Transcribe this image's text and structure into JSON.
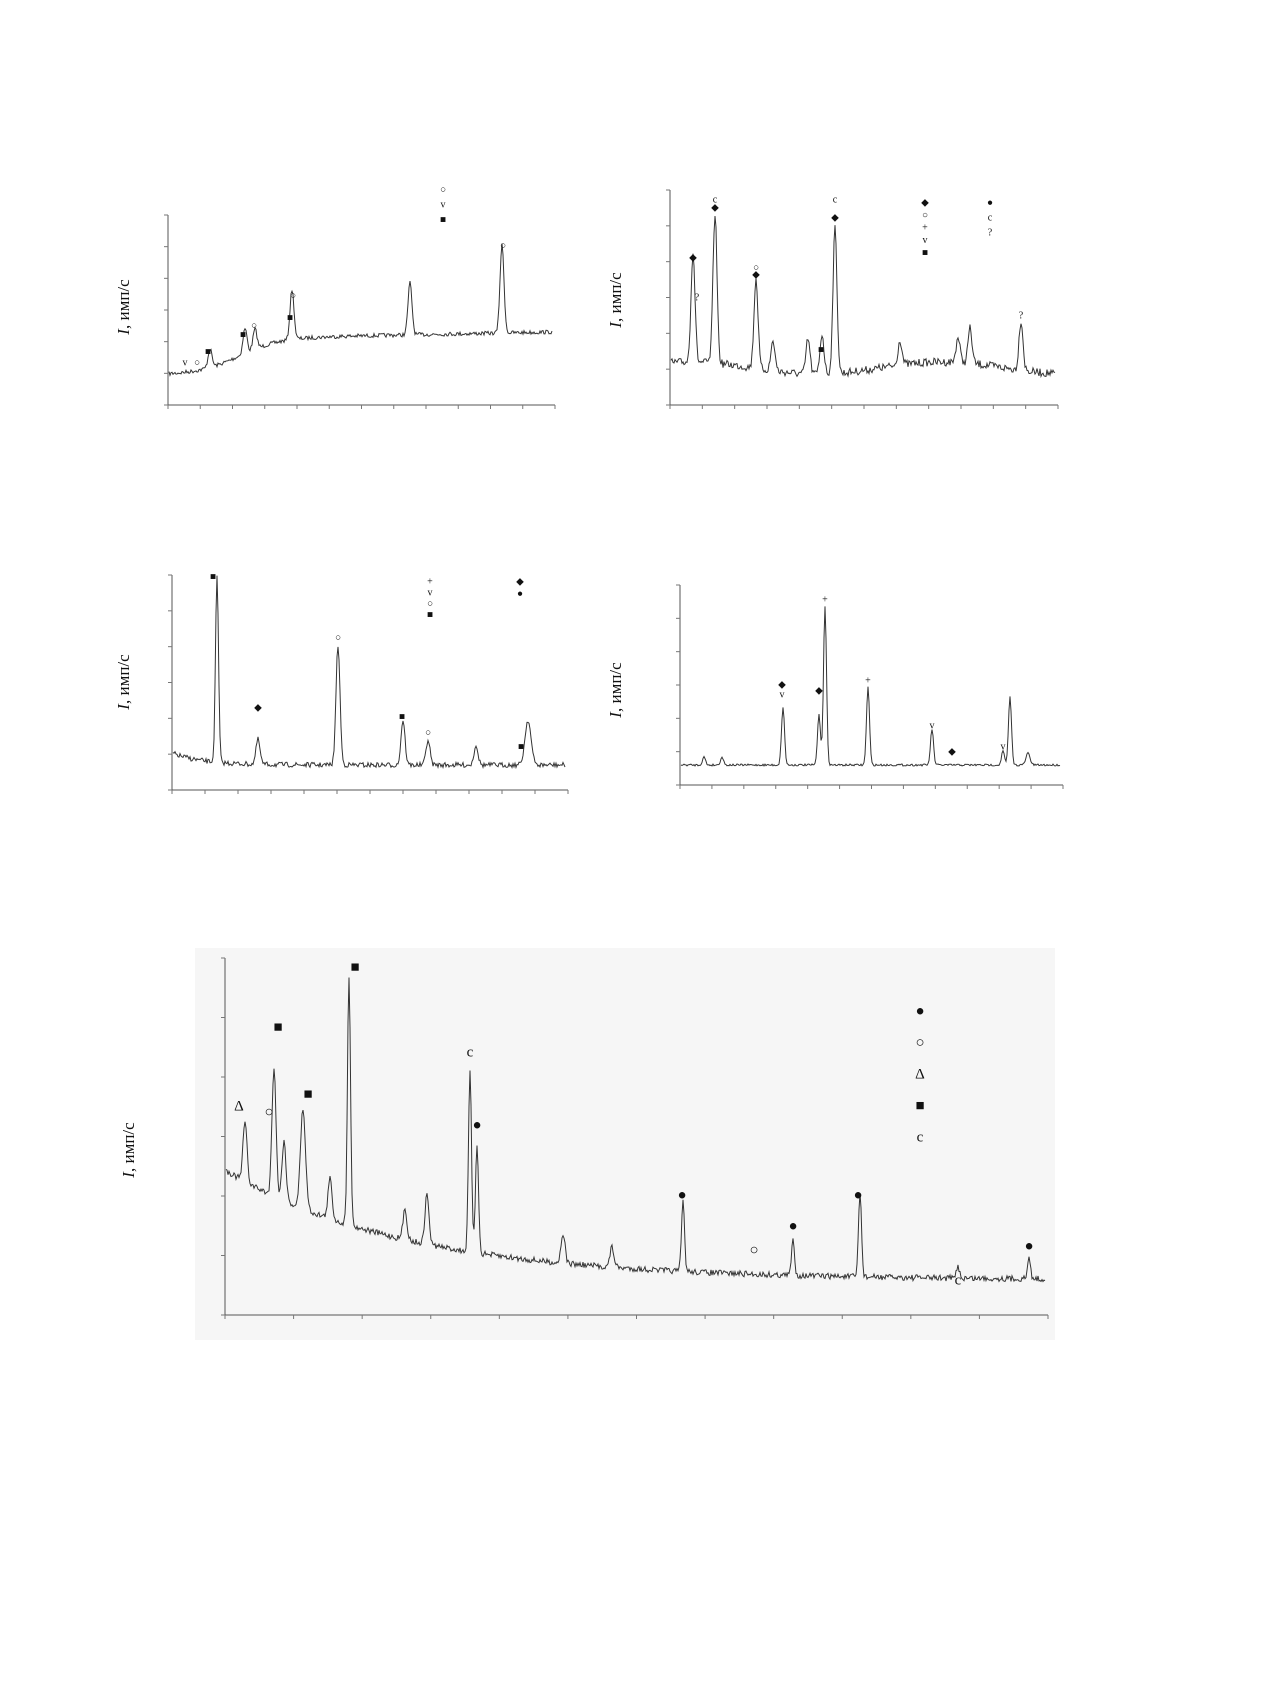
{
  "panels": [
    {
      "y_label_var": "I",
      "y_label_unit": ", имп/с",
      "legend": [
        [
          "○",
          "v",
          "■"
        ]
      ],
      "peak_labels": [
        "v",
        "○",
        "■",
        "■",
        "○",
        "■",
        "○",
        "○"
      ]
    },
    {
      "y_label_var": "I",
      "y_label_unit": ", имп/с",
      "legend": [
        [
          "◆",
          "○",
          "+",
          "v",
          "■"
        ],
        [
          "●",
          "c",
          "?"
        ]
      ],
      "peak_labels": [
        "◆",
        "c",
        "◆",
        "○",
        "◆",
        "?",
        "c",
        "◆",
        "?",
        "■"
      ]
    },
    {
      "y_label_var": "I",
      "y_label_unit": ", имп/с",
      "legend": [
        [
          "+",
          "v",
          "○",
          "■"
        ],
        [
          "◆",
          "●"
        ]
      ],
      "peak_labels": [
        "■",
        "○",
        "■",
        "○",
        "◆",
        "■"
      ]
    },
    {
      "y_label_var": "I",
      "y_label_unit": ", имп/с",
      "legend": [],
      "peak_labels": [
        "◆",
        "v",
        "◆",
        "+",
        "+",
        "v",
        "◆",
        "v"
      ]
    },
    {
      "y_label_var": "I",
      "y_label_unit": ", имп/с",
      "legend": [
        [
          "●",
          "○",
          "Δ",
          "■",
          "c"
        ]
      ],
      "peak_labels": [
        "■",
        "■",
        "■",
        "Δ",
        "○",
        "c",
        "●",
        "●",
        "●",
        "●",
        "○",
        "c",
        "●"
      ]
    }
  ]
}
